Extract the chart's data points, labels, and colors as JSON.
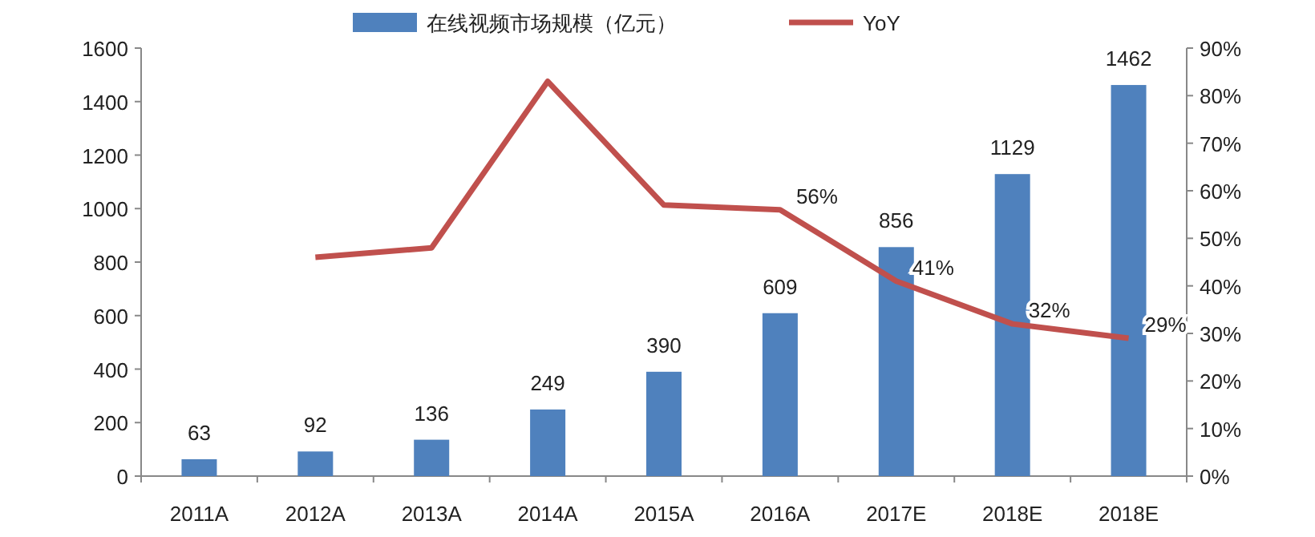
{
  "chart_data": {
    "type": "bar",
    "categories": [
      "2011A",
      "2012A",
      "2013A",
      "2014A",
      "2015A",
      "2016A",
      "2017E",
      "2018E",
      "2018E"
    ],
    "series": [
      {
        "name": "在线视频市场规模（亿元）",
        "color": "#4f81bd",
        "values": [
          63,
          92,
          136,
          249,
          390,
          609,
          856,
          1129,
          1462
        ],
        "value_labels": [
          "63",
          "92",
          "136",
          "249",
          "390",
          "609",
          "856",
          "1129",
          "1462"
        ]
      },
      {
        "type": "line",
        "axis": "y2",
        "name": "YoY",
        "color": "#c0504d",
        "values": [
          null,
          46,
          48,
          83,
          57,
          56,
          41,
          32,
          29
        ],
        "value_labels": [
          null,
          null,
          null,
          null,
          null,
          "56%",
          "41%",
          "32%",
          "29%"
        ]
      }
    ],
    "ylim": [
      0,
      1600
    ],
    "yticks": [
      0,
      200,
      400,
      600,
      800,
      1000,
      1200,
      1400,
      1600
    ],
    "y2lim": [
      0,
      90
    ],
    "y2ticks": [
      {
        "value": 0,
        "label": "0%"
      },
      {
        "value": 10,
        "label": "10%"
      },
      {
        "value": 20,
        "label": "20%"
      },
      {
        "value": 30,
        "label": "30%"
      },
      {
        "value": 40,
        "label": "40%"
      },
      {
        "value": 50,
        "label": "50%"
      },
      {
        "value": 60,
        "label": "60%"
      },
      {
        "value": 70,
        "label": "70%"
      },
      {
        "value": 80,
        "label": "80%"
      },
      {
        "value": 90,
        "label": "90%"
      }
    ],
    "legend": "top",
    "grid": false,
    "marker": "none"
  }
}
